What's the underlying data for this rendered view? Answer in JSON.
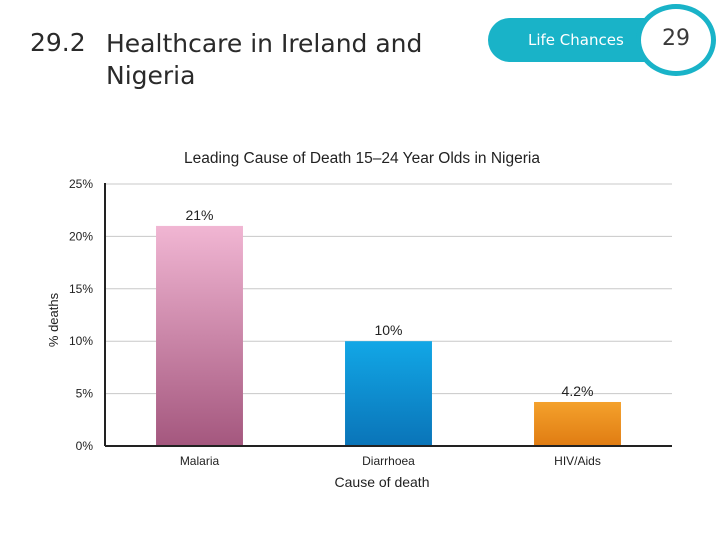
{
  "header": {
    "section_number": "29.2",
    "section_title": "Healthcare in Ireland and Nigeria",
    "chapter_label": "Life Chances",
    "chapter_number": "29"
  },
  "colors": {
    "accent": "#19b3c8",
    "malaria_top": "#f1b6d3",
    "malaria_bottom": "#a4577e",
    "diarrhoea_top": "#12a7e6",
    "diarrhoea_bottom": "#0a74b8",
    "hiv_top": "#f4a12c",
    "hiv_bottom": "#e07c12",
    "grid": "#c8c8c8"
  },
  "chart_data": {
    "type": "bar",
    "title": "Leading Cause of Death 15–24  Year Olds in Nigeria",
    "xlabel": "Cause of death",
    "ylabel": "% deaths",
    "categories": [
      "Malaria",
      "Diarrhoea",
      "HIV/Aids"
    ],
    "values": [
      21,
      10,
      4.2
    ],
    "data_labels": [
      "21%",
      "10%",
      "4.2%"
    ],
    "ylim": [
      0,
      25
    ],
    "yticks": [
      0,
      5,
      10,
      15,
      20,
      25
    ],
    "ytick_labels": [
      "0%",
      "5%",
      "10%",
      "15%",
      "20%",
      "25%"
    ],
    "grid": true,
    "legend": "none"
  }
}
